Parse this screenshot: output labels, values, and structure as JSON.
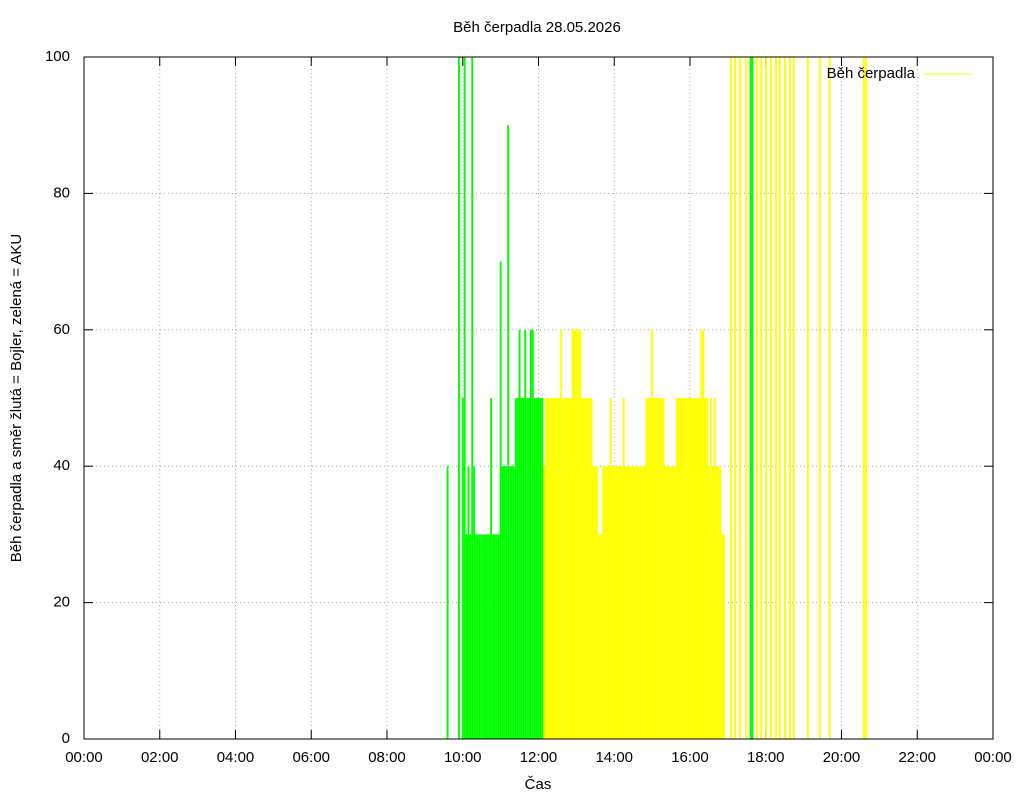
{
  "chart_data": {
    "type": "impulses",
    "title": "Běh čerpadla 28.05.2026",
    "x_label": "Čas",
    "y_label": "Běh čerpadla a směr žlutá = Bojler, zelená = AKU",
    "xlim": [
      0,
      24
    ],
    "ylim": [
      0,
      100
    ],
    "xticks": [
      {
        "value": 0,
        "label": "00:00"
      },
      {
        "value": 2,
        "label": "02:00"
      },
      {
        "value": 4,
        "label": "04:00"
      },
      {
        "value": 6,
        "label": "06:00"
      },
      {
        "value": 8,
        "label": "08:00"
      },
      {
        "value": 10,
        "label": "10:00"
      },
      {
        "value": 12,
        "label": "12:00"
      },
      {
        "value": 14,
        "label": "14:00"
      },
      {
        "value": 16,
        "label": "16:00"
      },
      {
        "value": 18,
        "label": "18:00"
      },
      {
        "value": 20,
        "label": "20:00"
      },
      {
        "value": 22,
        "label": "22:00"
      },
      {
        "value": 24,
        "label": "00:00"
      }
    ],
    "yticks": [
      0,
      20,
      40,
      60,
      80,
      100
    ],
    "grid": true,
    "legend": "top-right",
    "series": [
      {
        "name": "Běh čerpadla",
        "color": "#ffff00",
        "x": [
          12.15,
          12.2,
          12.25,
          12.3,
          12.35,
          12.4,
          12.45,
          12.5,
          12.55,
          12.6,
          12.65,
          12.7,
          12.75,
          12.8,
          12.85,
          12.9,
          12.95,
          13.0,
          13.05,
          13.1,
          13.15,
          13.2,
          13.25,
          13.3,
          13.35,
          13.4,
          13.45,
          13.5,
          13.55,
          13.6,
          13.65,
          13.7,
          13.75,
          13.8,
          13.85,
          13.9,
          13.95,
          14.0,
          14.05,
          14.1,
          14.15,
          14.2,
          14.25,
          14.3,
          14.35,
          14.4,
          14.45,
          14.5,
          14.55,
          14.6,
          14.65,
          14.7,
          14.75,
          14.8,
          14.85,
          14.9,
          14.95,
          15.0,
          15.05,
          15.1,
          15.15,
          15.2,
          15.25,
          15.3,
          15.35,
          15.4,
          15.45,
          15.5,
          15.55,
          15.6,
          15.65,
          15.7,
          15.75,
          15.8,
          15.85,
          15.9,
          15.95,
          16.0,
          16.05,
          16.1,
          16.15,
          16.2,
          16.25,
          16.3,
          16.35,
          16.4,
          16.45,
          16.5,
          16.55,
          16.6,
          16.65,
          16.7,
          16.75,
          16.8,
          16.85,
          16.9,
          17.08,
          17.19,
          17.32,
          17.48,
          17.77,
          17.88,
          18.01,
          18.14,
          18.27,
          18.37,
          18.51,
          18.64,
          18.74,
          19.11,
          19.43,
          19.69,
          20.59,
          20.65
        ],
        "values": [
          40,
          50,
          50,
          50,
          50,
          50,
          50,
          50,
          50,
          60,
          50,
          50,
          50,
          50,
          50,
          60,
          60,
          60,
          60,
          60,
          50,
          50,
          50,
          50,
          50,
          50,
          40,
          40,
          40,
          30,
          30,
          40,
          40,
          40,
          40,
          50,
          40,
          40,
          40,
          40,
          40,
          40,
          50,
          40,
          40,
          40,
          40,
          40,
          40,
          40,
          40,
          40,
          40,
          40,
          50,
          50,
          50,
          60,
          50,
          50,
          50,
          50,
          50,
          50,
          40,
          40,
          40,
          40,
          40,
          40,
          50,
          50,
          50,
          50,
          50,
          50,
          50,
          50,
          50,
          50,
          50,
          50,
          50,
          60,
          60,
          50,
          50,
          40,
          50,
          40,
          50,
          40,
          40,
          40,
          30,
          30,
          100,
          100,
          100,
          100,
          100,
          100,
          100,
          100,
          100,
          100,
          100,
          100,
          100,
          100,
          100,
          100,
          100,
          100
        ]
      },
      {
        "color": "#00ff00",
        "x": [
          9.6,
          9.9,
          10.0,
          10.05,
          10.1,
          10.15,
          10.2,
          10.25,
          10.3,
          10.35,
          10.4,
          10.45,
          10.5,
          10.55,
          10.6,
          10.65,
          10.7,
          10.75,
          10.8,
          10.85,
          10.9,
          10.95,
          11.0,
          11.05,
          11.1,
          11.15,
          11.2,
          11.25,
          11.3,
          11.35,
          11.4,
          11.45,
          11.5,
          11.55,
          11.6,
          11.65,
          11.7,
          11.75,
          11.8,
          11.85,
          11.9,
          11.95,
          12.0,
          12.05,
          12.1,
          17.6,
          17.65
        ],
        "values": [
          40,
          100,
          50,
          100,
          30,
          40,
          30,
          100,
          40,
          30,
          30,
          30,
          30,
          30,
          30,
          30,
          30,
          50,
          30,
          30,
          30,
          30,
          70,
          40,
          40,
          40,
          90,
          40,
          40,
          40,
          50,
          50,
          60,
          50,
          50,
          60,
          50,
          50,
          60,
          60,
          50,
          50,
          50,
          50,
          50,
          100,
          100
        ]
      }
    ]
  }
}
